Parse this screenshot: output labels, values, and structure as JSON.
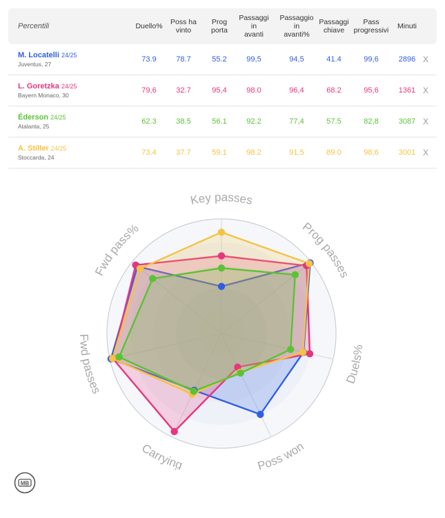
{
  "table": {
    "title": "Percentili",
    "columns": [
      [
        "Duello%"
      ],
      [
        "Poss ha",
        "vinto"
      ],
      [
        "Prog",
        "porta"
      ],
      [
        "Passaggi",
        "in",
        "avanti"
      ],
      [
        "Passaggio",
        "in",
        "avanti%"
      ],
      [
        "Passaggi",
        "chiave"
      ],
      [
        "Pass",
        "progressivi"
      ],
      [
        "Minuti"
      ]
    ],
    "remove_label": "X",
    "players": [
      {
        "name": "M. Locatelli",
        "season": "24/25",
        "team": "Juventus, 27",
        "color": "#2f5ee6",
        "values": [
          "73.9",
          "78.7",
          "55.2",
          "99,5",
          "94,5",
          "41.4",
          "99,6",
          "2896"
        ]
      },
      {
        "name": "L. Goretzka",
        "season": "24/25",
        "team": "Bayern Monaco, 30",
        "color": "#e8357e",
        "values": [
          "79,6",
          "32.7",
          "95,4",
          "98.0",
          "96,4",
          "68.2",
          "95,6",
          "1361"
        ]
      },
      {
        "name": "Éderson",
        "season": "24/25",
        "team": "Atalanta, 25",
        "color": "#5bc236",
        "values": [
          "62.3",
          "38.5",
          "56.1",
          "92.2",
          "77,4",
          "57.5",
          "82,8",
          "3087"
        ]
      },
      {
        "name": "A. Stiller",
        "season": "24/25",
        "team": "Stoccarda, 24",
        "color": "#f5c242",
        "values": [
          "73.4",
          "37.7",
          "59.1",
          "98.2",
          "91,5",
          "89.0",
          "98,6",
          "3001"
        ]
      }
    ]
  },
  "chart_data": {
    "type": "radar",
    "axes": [
      "Key passes",
      "Prog passes",
      "Duels%",
      "Poss won",
      "Carrying",
      "Fwd passes",
      "Fwd pass%"
    ],
    "range": [
      0,
      100
    ],
    "grid": true,
    "series": [
      {
        "name": "M. Locatelli",
        "color": "#2f5ee6",
        "values": [
          41.4,
          99.6,
          73.9,
          78.7,
          55.2,
          99.5,
          94.5
        ]
      },
      {
        "name": "L. Goretzka",
        "color": "#e8357e",
        "values": [
          68.2,
          95.6,
          79.6,
          32.7,
          95.4,
          98.0,
          96.4
        ]
      },
      {
        "name": "Éderson",
        "color": "#5bc236",
        "values": [
          57.5,
          82.8,
          62.3,
          38.5,
          56.1,
          92.2,
          77.4
        ]
      },
      {
        "name": "A. Stiller",
        "color": "#f5c242",
        "values": [
          89.0,
          98.6,
          73.4,
          37.7,
          59.1,
          98.2,
          91.5
        ]
      }
    ]
  },
  "logo": {
    "text": "MB"
  }
}
